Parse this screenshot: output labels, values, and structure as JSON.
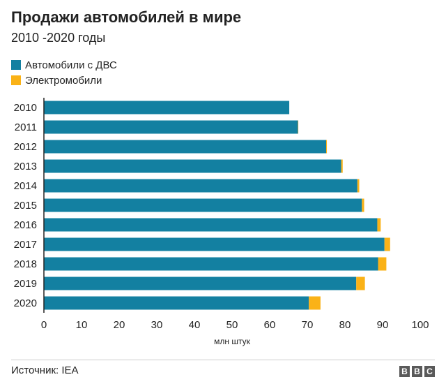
{
  "colors": {
    "ice": "#1380a1",
    "ev": "#fab217"
  },
  "footer": {
    "source": "Источник: IEA",
    "logo_letters": [
      "B",
      "B",
      "C"
    ]
  },
  "chart_data": {
    "type": "bar",
    "orientation": "horizontal",
    "stacked": true,
    "title": "Продажи автомобилей в мире",
    "subtitle": "2010 -2020 годы",
    "xlabel": "млн штук",
    "categories": [
      "2010",
      "2011",
      "2012",
      "2013",
      "2014",
      "2015",
      "2016",
      "2017",
      "2018",
      "2019",
      "2020"
    ],
    "series": [
      {
        "name": "Автомобили с ДВС",
        "values": [
          65.2,
          67.5,
          75.0,
          79.0,
          83.3,
          84.5,
          88.6,
          90.5,
          88.8,
          83.0,
          70.4
        ]
      },
      {
        "name": "Электромобили",
        "values": [
          0.0,
          0.1,
          0.2,
          0.4,
          0.5,
          0.6,
          0.9,
          1.5,
          2.2,
          2.3,
          3.1
        ]
      }
    ],
    "xlim": [
      0,
      100
    ],
    "xticks": [
      "0",
      "10",
      "20",
      "30",
      "40",
      "50",
      "60",
      "70",
      "80",
      "90",
      "100"
    ],
    "legend": "top-left",
    "grid": false
  }
}
